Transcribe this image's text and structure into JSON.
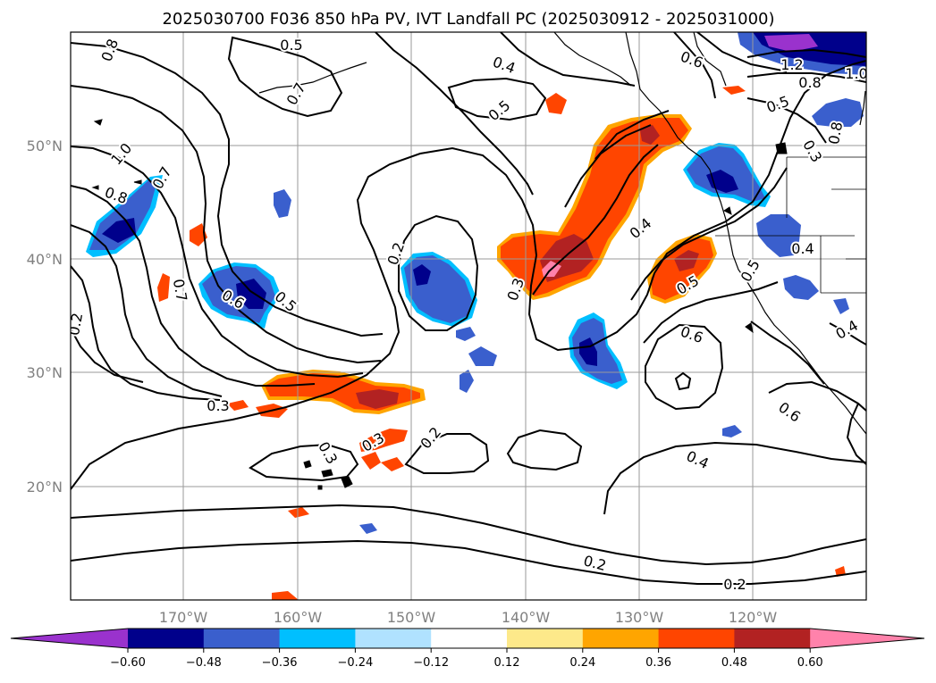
{
  "title": "2025030700 F036 850 hPa PV, IVT Landfall PC (2025030912 - 2025031000)",
  "axes": {
    "lon_labels": [
      "170°W",
      "160°W",
      "150°W",
      "140°W",
      "130°W",
      "120°W"
    ],
    "lat_labels": [
      "20°N",
      "30°N",
      "40°N",
      "50°N"
    ]
  },
  "contour_labels": [
    "0.8",
    "0.5",
    "0.7",
    "0.4",
    "0.5",
    "0.6",
    "1.2",
    "1.0",
    "0.8",
    "0.5",
    "0.8",
    "1.0",
    "0.7",
    "0.8",
    "0.2",
    "0.3",
    "0.4",
    "0.5",
    "0.4",
    "0.7",
    "0.6",
    "0.5",
    "0.2",
    "0.5",
    "0.6",
    "0.4",
    "0.3",
    "0.3",
    "0.3",
    "0.3",
    "0.2",
    "0.6",
    "0.4",
    "0.2",
    "0.2"
  ],
  "colorbar": {
    "tick_labels": [
      "−0.60",
      "−0.48",
      "−0.36",
      "−0.24",
      "−0.12",
      "0.12",
      "0.24",
      "0.36",
      "0.48",
      "0.60"
    ],
    "colors": [
      "#9a32cd",
      "#00008b",
      "#3a5fcd",
      "#00bfff",
      "#b0e2ff",
      "#ffffff",
      "#fde98a",
      "#ffa500",
      "#ff4500",
      "#b22222",
      "#ff82ab"
    ]
  }
}
